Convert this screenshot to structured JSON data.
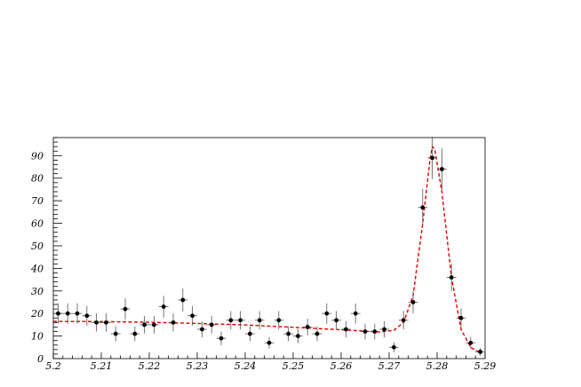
{
  "chart_data": {
    "type": "scatter",
    "title": "",
    "xlabel": "",
    "ylabel": "",
    "xlim": [
      5.2,
      5.29
    ],
    "ylim": [
      0,
      98
    ],
    "grid": false,
    "x_ticks": [
      5.2,
      5.21,
      5.22,
      5.23,
      5.24,
      5.25,
      5.26,
      5.27,
      5.28,
      5.29
    ],
    "x_tick_labels": [
      "5.2",
      "5.21",
      "5.22",
      "5.23",
      "5.24",
      "5.25",
      "5.26",
      "5.27",
      "5.28",
      "5.29"
    ],
    "y_ticks": [
      0,
      10,
      20,
      30,
      40,
      50,
      60,
      70,
      80,
      90
    ],
    "y_tick_labels": [
      "0",
      "10",
      "20",
      "30",
      "40",
      "50",
      "60",
      "70",
      "80",
      "90"
    ],
    "series": [
      {
        "type": "scatter",
        "x": [
          5.201,
          5.203,
          5.205,
          5.207,
          5.209,
          5.211,
          5.213,
          5.215,
          5.217,
          5.219,
          5.221,
          5.223,
          5.225,
          5.227,
          5.229,
          5.231,
          5.233,
          5.235,
          5.237,
          5.239,
          5.241,
          5.243,
          5.245,
          5.247,
          5.249,
          5.251,
          5.253,
          5.255,
          5.257,
          5.259,
          5.261,
          5.263,
          5.265,
          5.267,
          5.269,
          5.271,
          5.273,
          5.275,
          5.277,
          5.279,
          5.281,
          5.283,
          5.285,
          5.287,
          5.289
        ],
        "y": [
          20,
          20,
          20,
          19,
          16,
          16,
          11,
          22,
          11,
          15,
          15,
          23,
          16,
          26,
          19,
          13,
          15,
          9,
          17,
          17,
          11,
          17,
          7,
          17,
          11,
          10,
          14,
          11,
          20,
          17,
          13,
          20,
          12,
          12,
          13,
          5,
          17,
          25,
          67,
          89,
          84,
          36,
          18,
          7,
          3
        ],
        "yerr": [
          4.5,
          4.5,
          4.5,
          4.4,
          4,
          4,
          3.3,
          4.7,
          3.3,
          3.9,
          3.9,
          4.8,
          4,
          5.1,
          4.4,
          3.6,
          3.9,
          3,
          4.1,
          4.1,
          3.3,
          4.1,
          2.6,
          4.1,
          3.3,
          3.2,
          3.7,
          3.3,
          4.5,
          4.1,
          3.6,
          4.5,
          3.5,
          3.5,
          3.6,
          2.2,
          4.1,
          5,
          8.2,
          9.4,
          9.2,
          6,
          4.2,
          2.6,
          1.7
        ]
      },
      {
        "type": "line",
        "style": "dashed",
        "color": "#e00000",
        "x": [
          5.2,
          5.21,
          5.22,
          5.23,
          5.24,
          5.25,
          5.26,
          5.268,
          5.271,
          5.273,
          5.275,
          5.277,
          5.2785,
          5.279,
          5.2795,
          5.281,
          5.283,
          5.285,
          5.287,
          5.289
        ],
        "y": [
          16.5,
          16.4,
          16.1,
          15.6,
          14.9,
          13.9,
          12.8,
          11.8,
          12.5,
          16,
          28,
          60,
          88,
          94,
          93,
          74,
          36,
          13,
          5,
          2.5
        ]
      }
    ]
  }
}
